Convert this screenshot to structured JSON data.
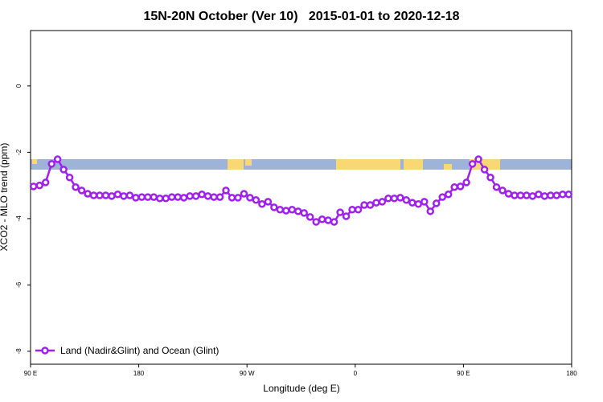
{
  "chart_data": {
    "type": "line",
    "title": "15N-20N October (Ver 10)   2015-01-01 to 2020-12-18",
    "x_label": "Longitude (deg E)",
    "y_label": "XCO2 - MLO trend (ppm)",
    "xlim": [
      90,
      540
    ],
    "ylim": [
      -8.39,
      1.67
    ],
    "xticks": [
      {
        "value": 90,
        "label": "90 E"
      },
      180,
      {
        "value": 270,
        "label": "90 W"
      },
      {
        "value": 360,
        "label": "0"
      },
      {
        "value": 450,
        "label": "90 E"
      },
      {
        "value": 540,
        "label": "180"
      }
    ],
    "yticks": [
      0,
      -2,
      -4,
      -6,
      -8
    ],
    "legend_position": "bottom-left",
    "x": [
      92.5,
      97.5,
      102.5,
      107.5,
      112.5,
      117.5,
      122.5,
      127.5,
      132.5,
      137.5,
      142.5,
      147.5,
      152.5,
      157.5,
      162.5,
      167.5,
      172.5,
      177.5,
      182.5,
      187.5,
      192.5,
      197.5,
      202.5,
      207.5,
      212.5,
      217.5,
      222.5,
      227.5,
      232.5,
      237.5,
      242.5,
      247.5,
      252.5,
      257.5,
      262.5,
      267.5,
      272.5,
      277.5,
      282.5,
      287.5,
      292.5,
      297.5,
      302.5,
      307.5,
      312.5,
      317.5,
      322.5,
      327.5,
      332.5,
      337.5,
      342.5,
      347.5,
      352.5,
      357.5,
      362.5,
      367.5,
      372.5,
      377.5,
      382.5,
      387.5,
      392.5,
      397.5,
      402.5,
      407.5,
      412.5,
      417.5,
      422.5,
      427.5,
      432.5,
      437.5,
      442.5,
      447.5,
      452.5,
      457.5,
      462.5,
      467.5,
      472.5,
      477.5,
      482.5,
      487.5,
      492.5,
      497.5,
      502.5,
      507.5,
      512.5,
      517.5,
      522.5,
      527.5,
      532.5,
      537.5
    ],
    "series": [
      {
        "name": "Land (Nadir&Glint) and Ocean (Glint)",
        "color": "#a020f0",
        "values": [
          -3.03,
          -3.0,
          -2.91,
          -2.35,
          -2.21,
          -2.52,
          -2.76,
          -3.05,
          -3.15,
          -3.25,
          -3.3,
          -3.3,
          -3.3,
          -3.32,
          -3.27,
          -3.32,
          -3.3,
          -3.37,
          -3.35,
          -3.35,
          -3.35,
          -3.39,
          -3.39,
          -3.35,
          -3.35,
          -3.37,
          -3.32,
          -3.32,
          -3.27,
          -3.32,
          -3.35,
          -3.35,
          -3.15,
          -3.37,
          -3.37,
          -3.25,
          -3.37,
          -3.44,
          -3.56,
          -3.49,
          -3.66,
          -3.73,
          -3.76,
          -3.73,
          -3.78,
          -3.83,
          -3.95,
          -4.1,
          -4.02,
          -4.05,
          -4.1,
          -3.81,
          -3.93,
          -3.73,
          -3.73,
          -3.59,
          -3.59,
          -3.52,
          -3.49,
          -3.39,
          -3.39,
          -3.37,
          -3.44,
          -3.52,
          -3.56,
          -3.49,
          -3.78,
          -3.54,
          -3.35,
          -3.27,
          -3.05,
          -3.03,
          -2.91,
          -2.35,
          -2.21,
          -2.52,
          -2.76,
          -3.05,
          -3.15,
          -3.25,
          -3.3,
          -3.3,
          -3.3,
          -3.32,
          -3.27,
          -3.32,
          -3.3,
          -3.3,
          -3.27,
          -3.27
        ]
      }
    ]
  }
}
